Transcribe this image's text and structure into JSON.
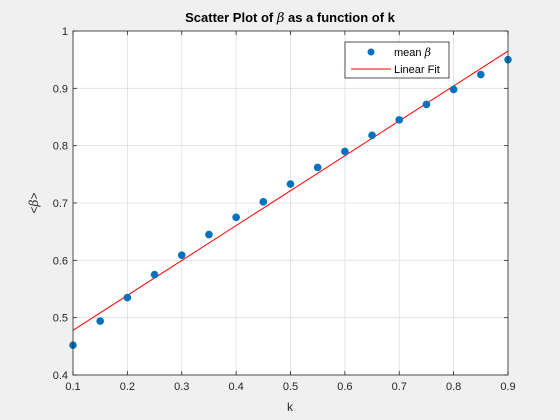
{
  "chart_data": {
    "type": "scatter",
    "title_prefix": "Scatter Plot of ",
    "title_symbol": "β",
    "title_suffix": " as a function of k",
    "xlabel": "k",
    "ylabel_open": "<",
    "ylabel_symbol": "β",
    "ylabel_close": ">",
    "xlim": [
      0.1,
      0.9
    ],
    "ylim": [
      0.4,
      1.0
    ],
    "xticks": [
      "0.1",
      "0.2",
      "0.3",
      "0.4",
      "0.5",
      "0.6",
      "0.7",
      "0.8",
      "0.9"
    ],
    "yticks": [
      "0.4",
      "0.5",
      "0.6",
      "0.7",
      "0.8",
      "0.9",
      "1"
    ],
    "grid": true,
    "legend_position": "top-right",
    "series": [
      {
        "name_prefix": "mean ",
        "name_symbol": "β",
        "kind": "scatter",
        "color": "#0072BD",
        "x": [
          0.1,
          0.15,
          0.2,
          0.25,
          0.3,
          0.35,
          0.4,
          0.45,
          0.5,
          0.55,
          0.6,
          0.65,
          0.7,
          0.75,
          0.8,
          0.85,
          0.9
        ],
        "y": [
          0.452,
          0.494,
          0.535,
          0.575,
          0.609,
          0.645,
          0.675,
          0.702,
          0.733,
          0.762,
          0.79,
          0.818,
          0.845,
          0.872,
          0.898,
          0.924,
          0.95
        ]
      },
      {
        "name": "Linear Fit",
        "kind": "line",
        "color": "#FF0000",
        "x": [
          0.1,
          0.9
        ],
        "y": [
          0.478,
          0.965
        ]
      }
    ]
  }
}
